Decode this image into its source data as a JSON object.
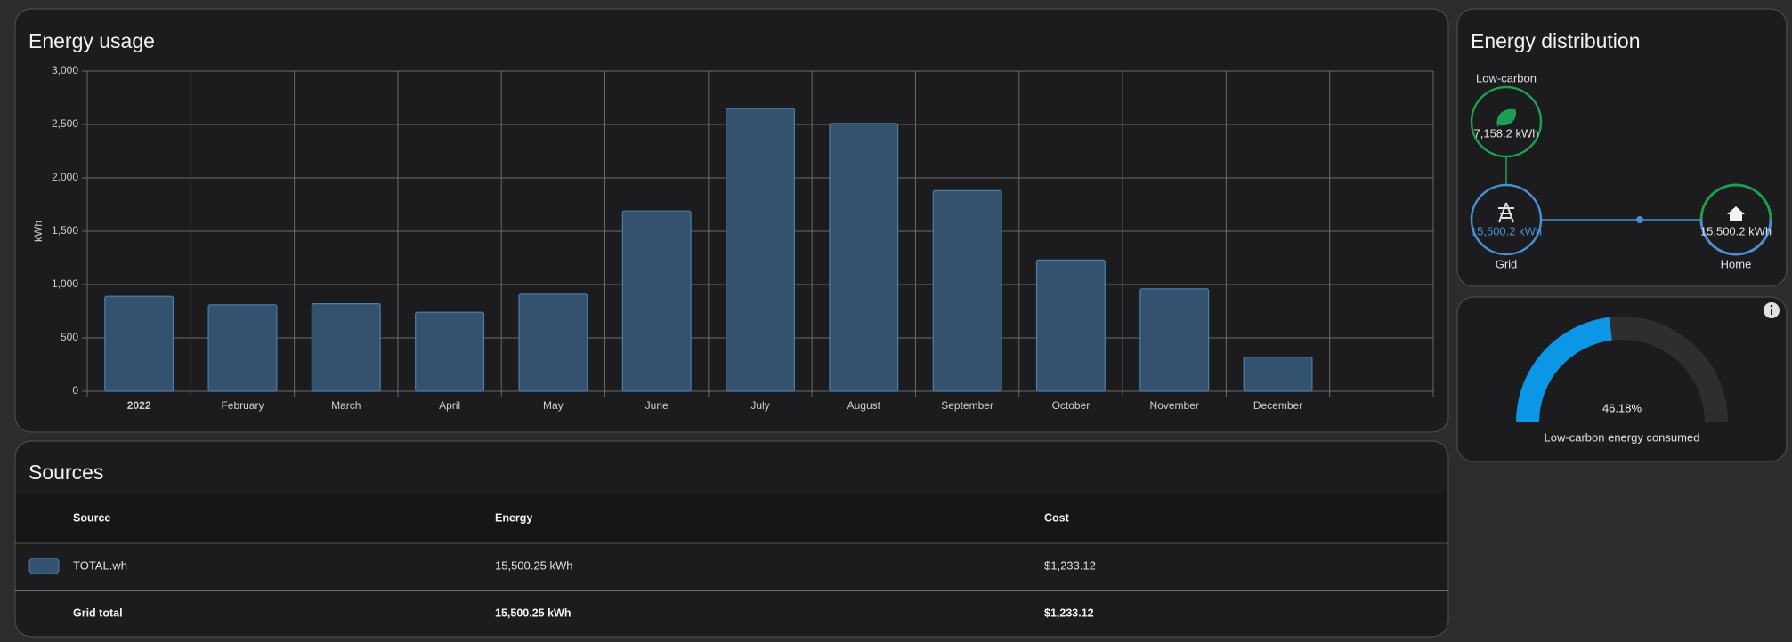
{
  "chart_data": {
    "type": "bar",
    "title": "Energy usage",
    "y_label": "kWh",
    "categories": [
      "2022",
      "February",
      "March",
      "April",
      "May",
      "June",
      "July",
      "August",
      "September",
      "October",
      "November",
      "December",
      null
    ],
    "values": [
      890,
      810,
      820,
      740,
      910,
      1690,
      2650,
      2510,
      1880,
      1230,
      960,
      320,
      null
    ],
    "color": "#34526e",
    "ylim": [
      0,
      3000
    ],
    "yticks": [
      0,
      500,
      {
        "value": 1000,
        "label": "1,000"
      },
      {
        "value": 1500,
        "label": "1,500"
      },
      {
        "value": 2000,
        "label": "2,000"
      },
      {
        "value": 2500,
        "label": "2,500"
      },
      {
        "value": 3000,
        "label": "3,000"
      }
    ],
    "grid": true
  },
  "distribution": {
    "title": "Energy distribution",
    "low_carbon": {
      "label": "Low-carbon",
      "value": "7,158.2 kWh"
    },
    "grid": {
      "label": "Grid",
      "value": "15,500.2 kWh"
    },
    "home": {
      "label": "Home",
      "value": "15,500.2 kWh"
    }
  },
  "gauge": {
    "value": 46.18,
    "value_label": "46.18%",
    "range": [
      0,
      100
    ],
    "label": "Low-carbon energy consumed"
  },
  "sources": {
    "title": "Sources",
    "header": [
      "Source",
      "Energy",
      "Cost"
    ],
    "rows": [
      [
        "TOTAL.wh",
        "15,500.25 kWh",
        "$1,233.12"
      ]
    ],
    "footer": [
      "Grid total",
      "15,500.25 kWh",
      "$1,233.12"
    ]
  }
}
